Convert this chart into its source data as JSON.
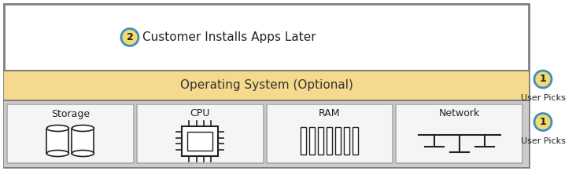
{
  "fig_width": 7.46,
  "fig_height": 2.18,
  "dpi": 100,
  "bg_color": "#ffffff",
  "outer_border_color": "#7f7f7f",
  "top_section_bg": "#ffffff",
  "os_section_bg": "#f5d98c",
  "os_section_label": "Operating System (Optional)",
  "hw_section_bg": "#cccccc",
  "top_label": "Customer Installs Apps Later",
  "circle_fill": "#f5d870",
  "circle_stroke": "#3a8fc4",
  "hw_items": [
    "Storage",
    "CPU",
    "RAM",
    "Network"
  ],
  "right_label": "User Picks",
  "item_box_bg": "#f5f5f5",
  "item_box_border": "#aaaaaa",
  "icon_color": "#222222"
}
